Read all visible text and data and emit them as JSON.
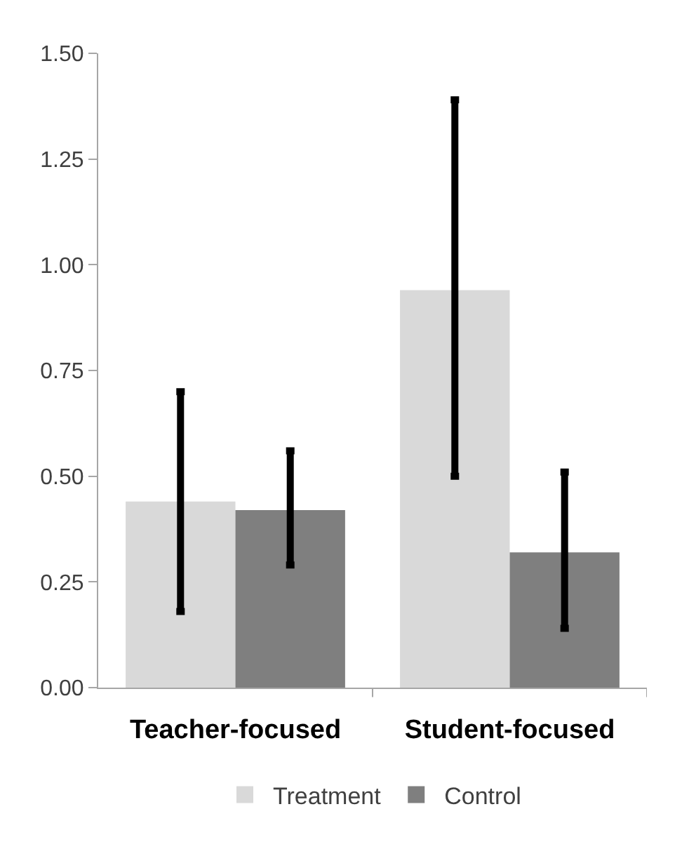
{
  "chart_data": {
    "type": "bar",
    "categories": [
      "Teacher-focused",
      "Student-focused"
    ],
    "series": [
      {
        "name": "Treatment",
        "color": "#d9d9d9",
        "values": [
          0.44,
          0.94
        ],
        "errors": [
          [
            0.18,
            0.7
          ],
          [
            0.5,
            1.39
          ]
        ]
      },
      {
        "name": "Control",
        "color": "#7f7f7f",
        "values": [
          0.42,
          0.32
        ],
        "errors": [
          [
            0.29,
            0.56
          ],
          [
            0.14,
            0.51
          ]
        ]
      }
    ],
    "ylim": [
      0,
      1.5
    ],
    "yticks": [
      {
        "value": 0,
        "label": "0.00"
      },
      {
        "value": 0.25,
        "label": "0.25"
      },
      {
        "value": 0.5,
        "label": "0.50"
      },
      {
        "value": 0.75,
        "label": "0.75"
      },
      {
        "value": 1,
        "label": "1.00"
      },
      {
        "value": 1.25,
        "label": "1.25"
      },
      {
        "value": 1.5,
        "label": "1.50"
      }
    ],
    "grid": false,
    "legend": "bottom"
  }
}
